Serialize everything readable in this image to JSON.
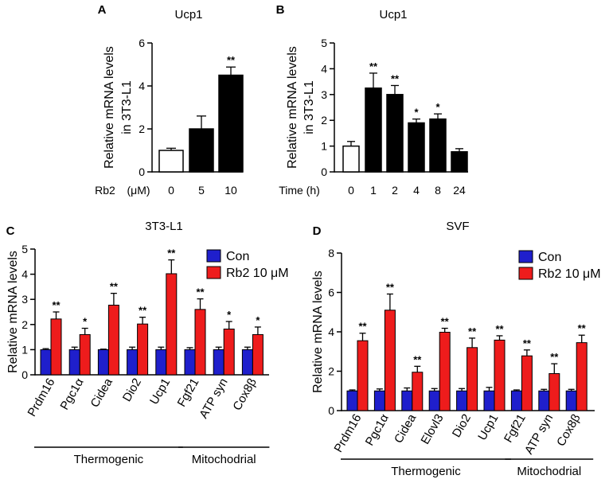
{
  "colors": {
    "con": "#1f1fcc",
    "rb2": "#ee1c1c",
    "black": "#000000",
    "white": "#ffffff"
  },
  "chart_data": [
    {
      "panel": "A",
      "type": "bar",
      "title": "Ucp1",
      "ylabel": [
        "Relative mRNA levels",
        "in 3T3-L1"
      ],
      "xlabel_prefix": "Rb2",
      "xlabel_unit": "(μM)",
      "categories": [
        "0",
        "5",
        "10"
      ],
      "values": [
        1.0,
        2.0,
        4.5
      ],
      "errors": [
        0.1,
        0.6,
        0.38
      ],
      "fills": [
        "white",
        "black",
        "black"
      ],
      "sig": [
        "",
        "",
        "**"
      ],
      "ylim": [
        0,
        6
      ],
      "yticks": [
        0,
        2,
        4,
        6
      ]
    },
    {
      "panel": "B",
      "type": "bar",
      "title": "Ucp1",
      "ylabel": [
        "Relative mRNA levels",
        "in 3T3-L1"
      ],
      "xlabel_prefix": "Time (h)",
      "categories": [
        "0",
        "1",
        "2",
        "4",
        "8",
        "24"
      ],
      "values": [
        1.0,
        3.25,
        3.0,
        1.9,
        2.05,
        0.78
      ],
      "errors": [
        0.18,
        0.58,
        0.35,
        0.15,
        0.2,
        0.12
      ],
      "fills": [
        "white",
        "black",
        "black",
        "black",
        "black",
        "black"
      ],
      "sig": [
        "",
        "**",
        "**",
        "*",
        "*",
        ""
      ],
      "ylim": [
        0,
        5
      ],
      "yticks": [
        0,
        1,
        2,
        3,
        4,
        5
      ]
    },
    {
      "panel": "C",
      "type": "bar",
      "title": "3T3-L1",
      "ylabel": [
        "Relative mRNA levels"
      ],
      "categories": [
        "Prdm16",
        "Pgc1α",
        "Cidea",
        "Dio2",
        "Ucp1",
        "Fgf21",
        "ATP syn",
        "Cox8β"
      ],
      "series": [
        {
          "name": "Con",
          "values": [
            1.0,
            1.0,
            1.0,
            1.0,
            1.0,
            1.0,
            1.0,
            1.0
          ],
          "errors": [
            0.04,
            0.1,
            0.02,
            0.1,
            0.1,
            0.08,
            0.1,
            0.1
          ]
        },
        {
          "name": "Rb2 10 μM",
          "values": [
            2.22,
            1.6,
            2.77,
            2.02,
            4.02,
            2.6,
            1.82,
            1.6
          ],
          "errors": [
            0.28,
            0.25,
            0.47,
            0.27,
            0.55,
            0.42,
            0.3,
            0.3
          ]
        }
      ],
      "sig": [
        "**",
        "*",
        "**",
        "**",
        "**",
        "**",
        "*",
        "*"
      ],
      "groups": [
        {
          "label": "Thermogenic",
          "from": 0,
          "to": 4
        },
        {
          "label": "Mitochodrial",
          "from": 5,
          "to": 7
        }
      ],
      "ylim": [
        0,
        5
      ],
      "yticks": [
        0,
        1,
        2,
        3,
        4,
        5
      ]
    },
    {
      "panel": "D",
      "type": "bar",
      "title": "SVF",
      "ylabel": [
        "Relative mRNA levels"
      ],
      "categories": [
        "Prdm16",
        "Pgc1α",
        "Cidea",
        "Elovl3",
        "Dio2",
        "Ucp1",
        "Fgf21",
        "ATP syn",
        "Cox8β"
      ],
      "series": [
        {
          "name": "Con",
          "values": [
            1.0,
            1.0,
            1.0,
            1.0,
            1.0,
            1.0,
            1.0,
            1.0,
            1.0
          ],
          "errors": [
            0.05,
            0.1,
            0.15,
            0.12,
            0.12,
            0.18,
            0.05,
            0.08,
            0.08
          ]
        },
        {
          "name": "Rb2 10 μM",
          "values": [
            3.55,
            5.1,
            1.95,
            3.98,
            3.2,
            3.58,
            2.78,
            1.88,
            3.45
          ],
          "errors": [
            0.38,
            0.82,
            0.3,
            0.2,
            0.48,
            0.22,
            0.3,
            0.5,
            0.38
          ]
        }
      ],
      "sig": [
        "**",
        "**",
        "**",
        "**",
        "**",
        "**",
        "**",
        "**",
        "**"
      ],
      "groups": [
        {
          "label": "Thermogenic",
          "from": 0,
          "to": 5
        },
        {
          "label": "Mitochodrial",
          "from": 6,
          "to": 8
        }
      ],
      "ylim": [
        0,
        8
      ],
      "yticks": [
        0,
        2,
        4,
        6,
        8
      ]
    }
  ]
}
